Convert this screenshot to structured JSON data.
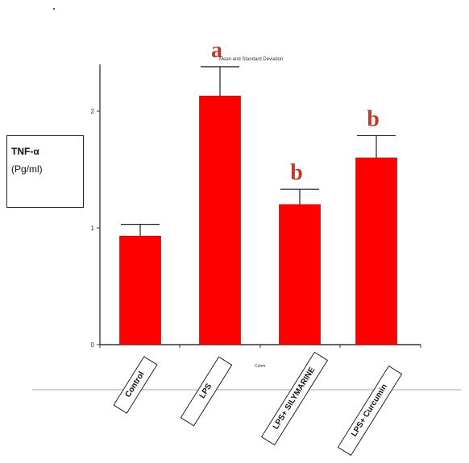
{
  "chart_data": {
    "type": "bar",
    "ylabel_line1": "TNF-α",
    "ylabel_line2": "(Pg/ml)",
    "xlabel": "Cohm",
    "categories": [
      "Control",
      "LPS",
      "LPS+ SILYMARINE",
      "LPS+ Curcumin"
    ],
    "values": [
      0.93,
      2.13,
      1.2,
      1.6
    ],
    "errors": [
      0.1,
      0.25,
      0.13,
      0.19
    ],
    "significance": [
      "",
      "a",
      "b",
      "b"
    ],
    "legend_note": "Mean and Standard Deviation",
    "ylim": [
      0,
      2.4
    ],
    "yticks": [
      0,
      1,
      2
    ],
    "ytick_labels": [
      "0",
      "1",
      "2"
    ],
    "colors": {
      "bar": "#ff0000",
      "sig": "#c0392b",
      "axis": "#333333"
    }
  }
}
